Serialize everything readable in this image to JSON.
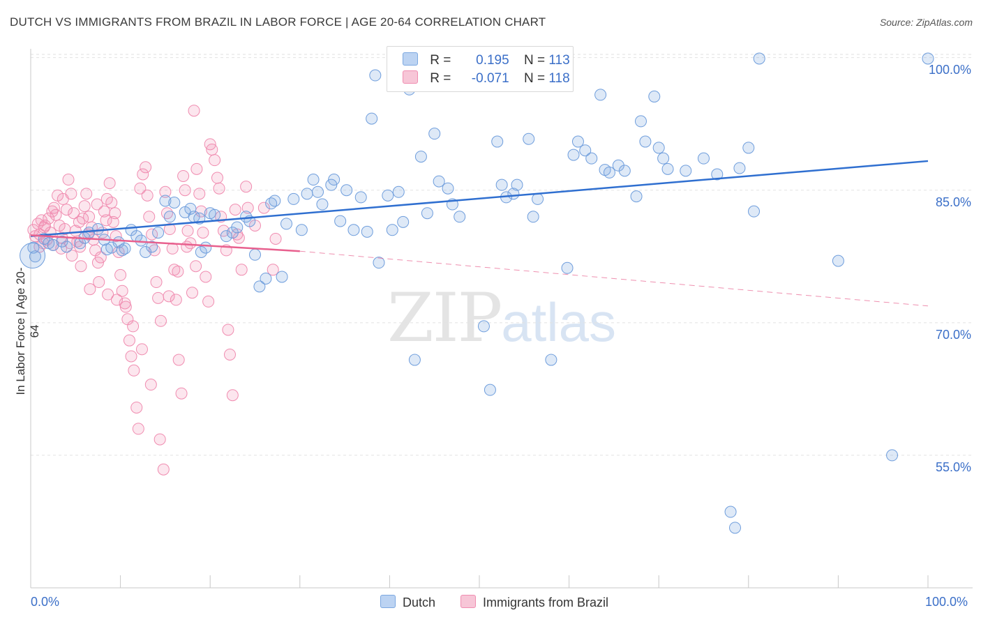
{
  "title": "DUTCH VS IMMIGRANTS FROM BRAZIL IN LABOR FORCE | AGE 20-64 CORRELATION CHART",
  "source": "Source: ZipAtlas.com",
  "watermark": {
    "zip": "ZIP",
    "atlas": "atlas"
  },
  "colors": {
    "dutch": "#7ba7e0",
    "dutch_line": "#2f6fd0",
    "brazil": "#f08cb0",
    "brazil_line": "#e8608e",
    "tick_text": "#3b6fc8"
  },
  "legend": {
    "dutch": {
      "r_label": "R =",
      "r_value": "0.195",
      "n_label": "N =",
      "n_value": "113"
    },
    "brazil": {
      "r_label": "R =",
      "r_value": "-0.071",
      "n_label": "N =",
      "n_value": "118"
    }
  },
  "bottom_legend": {
    "dutch": "Dutch",
    "brazil": "Immigrants from Brazil"
  },
  "chart_data": {
    "type": "scatter",
    "xlabel": "",
    "ylabel": "In Labor Force | Age 20-64",
    "xlim": [
      0,
      100
    ],
    "ylim": [
      40,
      101
    ],
    "x_tick_labels": [
      "0.0%",
      "100.0%"
    ],
    "y_ticks": [
      55,
      70,
      85,
      100
    ],
    "y_tick_labels": [
      "55.0%",
      "70.0%",
      "85.0%",
      "100.0%"
    ],
    "grid": true,
    "legend_position": "top-center",
    "series": [
      {
        "name": "Dutch",
        "trend": {
          "x": [
            0,
            100
          ],
          "y": [
            79.8,
            88.3
          ],
          "style": "solid"
        },
        "points": [
          [
            0.3,
            78.5
          ],
          [
            0.5,
            77.5
          ],
          [
            1.5,
            79.5
          ],
          [
            2.0,
            79.0
          ],
          [
            2.5,
            78.8
          ],
          [
            3.5,
            79.2
          ],
          [
            4.0,
            78.6
          ],
          [
            5.5,
            79.0
          ],
          [
            6.0,
            79.6
          ],
          [
            6.5,
            80.2
          ],
          [
            7.5,
            80.6
          ],
          [
            8.2,
            79.4
          ],
          [
            8.5,
            78.3
          ],
          [
            9.0,
            78.5
          ],
          [
            9.8,
            79.1
          ],
          [
            10.2,
            78.2
          ],
          [
            10.5,
            78.4
          ],
          [
            11.2,
            80.5
          ],
          [
            11.8,
            79.8
          ],
          [
            12.3,
            79.3
          ],
          [
            12.8,
            78.0
          ],
          [
            13.5,
            78.6
          ],
          [
            14.2,
            80.2
          ],
          [
            15.0,
            83.8
          ],
          [
            15.5,
            82.0
          ],
          [
            16.0,
            83.6
          ],
          [
            17.2,
            82.5
          ],
          [
            17.8,
            82.9
          ],
          [
            18.2,
            82.0
          ],
          [
            18.8,
            81.8
          ],
          [
            19.0,
            78.0
          ],
          [
            19.5,
            78.5
          ],
          [
            20.0,
            82.4
          ],
          [
            20.5,
            82.2
          ],
          [
            21.8,
            79.8
          ],
          [
            22.5,
            80.2
          ],
          [
            23.0,
            80.8
          ],
          [
            24.0,
            82.0
          ],
          [
            24.4,
            81.5
          ],
          [
            25.0,
            77.7
          ],
          [
            25.5,
            74.1
          ],
          [
            26.2,
            75.0
          ],
          [
            26.8,
            83.5
          ],
          [
            27.2,
            83.8
          ],
          [
            28.0,
            75.2
          ],
          [
            28.5,
            81.2
          ],
          [
            29.3,
            84.0
          ],
          [
            30.2,
            80.5
          ],
          [
            30.8,
            84.6
          ],
          [
            31.5,
            86.2
          ],
          [
            32.0,
            84.8
          ],
          [
            32.5,
            83.4
          ],
          [
            33.5,
            85.6
          ],
          [
            33.8,
            86.2
          ],
          [
            34.5,
            81.5
          ],
          [
            35.2,
            85.0
          ],
          [
            36.0,
            80.5
          ],
          [
            36.8,
            84.2
          ],
          [
            37.5,
            80.3
          ],
          [
            38.0,
            93.1
          ],
          [
            38.4,
            98.0
          ],
          [
            38.8,
            76.8
          ],
          [
            39.8,
            84.4
          ],
          [
            40.3,
            80.5
          ],
          [
            41.0,
            84.8
          ],
          [
            41.5,
            81.4
          ],
          [
            42.2,
            96.4
          ],
          [
            42.8,
            65.8
          ],
          [
            43.5,
            88.8
          ],
          [
            44.2,
            82.4
          ],
          [
            45.0,
            91.4
          ],
          [
            45.5,
            86.0
          ],
          [
            46.5,
            85.2
          ],
          [
            47.0,
            83.4
          ],
          [
            47.8,
            82.0
          ],
          [
            48.2,
            97.3
          ],
          [
            50.5,
            69.6
          ],
          [
            51.2,
            62.4
          ],
          [
            52.0,
            90.5
          ],
          [
            52.5,
            85.6
          ],
          [
            53.0,
            84.2
          ],
          [
            53.8,
            84.6
          ],
          [
            54.2,
            85.6
          ],
          [
            55.5,
            90.8
          ],
          [
            56.0,
            82.0
          ],
          [
            56.5,
            84.0
          ],
          [
            58.0,
            65.8
          ],
          [
            59.8,
            76.2
          ],
          [
            60.5,
            89.0
          ],
          [
            61.0,
            90.5
          ],
          [
            61.8,
            89.5
          ],
          [
            62.5,
            88.6
          ],
          [
            63.5,
            95.8
          ],
          [
            64.0,
            87.3
          ],
          [
            64.5,
            87.0
          ],
          [
            65.5,
            87.8
          ],
          [
            66.2,
            87.2
          ],
          [
            67.5,
            84.3
          ],
          [
            68.0,
            92.8
          ],
          [
            68.5,
            90.5
          ],
          [
            69.5,
            95.6
          ],
          [
            70.0,
            89.8
          ],
          [
            70.5,
            88.6
          ],
          [
            71.0,
            87.4
          ],
          [
            73.0,
            87.2
          ],
          [
            75.0,
            88.6
          ],
          [
            76.5,
            86.8
          ],
          [
            78.0,
            48.6
          ],
          [
            78.5,
            46.8
          ],
          [
            79.0,
            87.5
          ],
          [
            80.0,
            89.8
          ],
          [
            80.6,
            82.6
          ],
          [
            81.2,
            99.9
          ],
          [
            90.0,
            77.0
          ],
          [
            96.0,
            55.0
          ],
          [
            100.0,
            99.9
          ]
        ]
      },
      {
        "name": "Immigrants from Brazil",
        "trend": {
          "x": [
            0,
            30
          ],
          "y": [
            79.9,
            78.1
          ],
          "style": "solid",
          "extended": {
            "x": [
              30,
              100
            ],
            "y": [
              78.1,
              71.9
            ],
            "style": "dashed"
          }
        },
        "points": [
          [
            0.3,
            80.5
          ],
          [
            0.5,
            79.8
          ],
          [
            0.8,
            81.2
          ],
          [
            1.0,
            80.0
          ],
          [
            1.2,
            81.6
          ],
          [
            1.5,
            80.8
          ],
          [
            1.8,
            79.4
          ],
          [
            2.0,
            81.8
          ],
          [
            2.2,
            80.2
          ],
          [
            2.5,
            78.8
          ],
          [
            2.8,
            82.2
          ],
          [
            3.0,
            84.4
          ],
          [
            3.2,
            81.0
          ],
          [
            3.5,
            79.6
          ],
          [
            3.8,
            80.6
          ],
          [
            4.0,
            82.8
          ],
          [
            4.2,
            86.2
          ],
          [
            4.5,
            84.6
          ],
          [
            4.8,
            82.4
          ],
          [
            5.0,
            80.4
          ],
          [
            5.2,
            79.2
          ],
          [
            5.5,
            78.6
          ],
          [
            5.8,
            81.8
          ],
          [
            6.0,
            83.2
          ],
          [
            6.2,
            84.6
          ],
          [
            6.5,
            82.0
          ],
          [
            6.8,
            80.8
          ],
          [
            7.0,
            79.4
          ],
          [
            7.2,
            78.2
          ],
          [
            7.5,
            76.8
          ],
          [
            7.8,
            77.4
          ],
          [
            8.0,
            80.2
          ],
          [
            8.2,
            82.6
          ],
          [
            8.5,
            84.0
          ],
          [
            8.8,
            85.8
          ],
          [
            9.0,
            83.6
          ],
          [
            9.2,
            81.4
          ],
          [
            9.5,
            79.8
          ],
          [
            9.8,
            78.0
          ],
          [
            10.0,
            75.4
          ],
          [
            10.2,
            73.6
          ],
          [
            10.5,
            72.2
          ],
          [
            10.8,
            70.4
          ],
          [
            11.0,
            68.0
          ],
          [
            11.2,
            66.2
          ],
          [
            11.5,
            64.6
          ],
          [
            11.8,
            60.4
          ],
          [
            12.0,
            58.0
          ],
          [
            12.2,
            85.2
          ],
          [
            12.5,
            86.8
          ],
          [
            12.8,
            87.6
          ],
          [
            13.0,
            84.4
          ],
          [
            13.2,
            82.0
          ],
          [
            13.5,
            80.0
          ],
          [
            13.8,
            78.2
          ],
          [
            14.0,
            74.6
          ],
          [
            14.2,
            72.8
          ],
          [
            14.5,
            70.2
          ],
          [
            14.8,
            53.4
          ],
          [
            15.0,
            84.8
          ],
          [
            15.2,
            82.4
          ],
          [
            15.5,
            80.6
          ],
          [
            15.8,
            78.4
          ],
          [
            16.0,
            76.0
          ],
          [
            16.2,
            72.6
          ],
          [
            16.5,
            65.8
          ],
          [
            16.8,
            62.0
          ],
          [
            17.0,
            86.6
          ],
          [
            17.2,
            85.0
          ],
          [
            17.5,
            80.4
          ],
          [
            17.8,
            79.0
          ],
          [
            18.0,
            73.4
          ],
          [
            18.2,
            94.0
          ],
          [
            18.5,
            87.4
          ],
          [
            18.8,
            84.6
          ],
          [
            19.0,
            82.6
          ],
          [
            19.2,
            80.2
          ],
          [
            19.5,
            75.2
          ],
          [
            19.8,
            72.4
          ],
          [
            20.0,
            90.2
          ],
          [
            20.2,
            89.6
          ],
          [
            20.5,
            88.4
          ],
          [
            20.8,
            86.4
          ],
          [
            21.0,
            85.2
          ],
          [
            21.2,
            82.0
          ],
          [
            21.5,
            80.4
          ],
          [
            21.8,
            78.2
          ],
          [
            22.0,
            69.2
          ],
          [
            22.2,
            66.4
          ],
          [
            22.5,
            61.8
          ],
          [
            22.8,
            82.8
          ],
          [
            23.0,
            80.0
          ],
          [
            23.2,
            79.6
          ],
          [
            23.5,
            76.0
          ],
          [
            24.0,
            85.4
          ],
          [
            24.2,
            83.0
          ],
          [
            25.0,
            81.0
          ],
          [
            26.0,
            83.0
          ],
          [
            27.0,
            76.0
          ],
          [
            27.3,
            79.5
          ],
          [
            1.0,
            78.6
          ],
          [
            1.4,
            79.0
          ],
          [
            2.6,
            83.0
          ],
          [
            3.6,
            84.0
          ],
          [
            4.4,
            79.0
          ],
          [
            5.4,
            81.4
          ],
          [
            6.4,
            80.0
          ],
          [
            7.4,
            83.4
          ],
          [
            8.4,
            81.6
          ],
          [
            9.4,
            82.4
          ],
          [
            1.6,
            81.0
          ],
          [
            2.4,
            82.6
          ],
          [
            3.4,
            78.4
          ],
          [
            4.6,
            77.6
          ],
          [
            5.6,
            76.4
          ],
          [
            6.6,
            73.8
          ],
          [
            7.6,
            74.6
          ],
          [
            8.6,
            73.2
          ],
          [
            9.6,
            72.6
          ],
          [
            10.6,
            71.8
          ],
          [
            11.4,
            69.6
          ],
          [
            12.4,
            67.0
          ],
          [
            13.4,
            63.0
          ],
          [
            14.4,
            56.8
          ],
          [
            15.4,
            73.0
          ],
          [
            16.4,
            75.8
          ],
          [
            17.4,
            78.6
          ],
          [
            18.4,
            76.4
          ]
        ]
      }
    ]
  }
}
